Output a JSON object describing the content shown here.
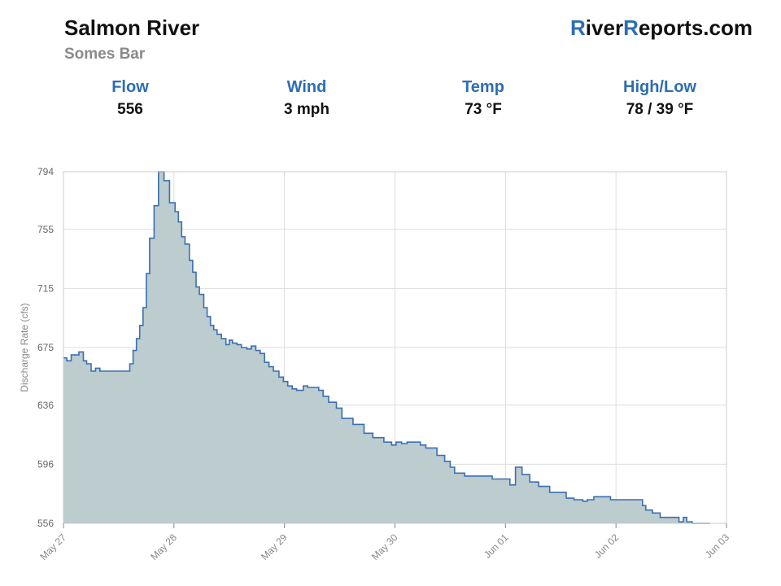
{
  "header": {
    "title": "Salmon River",
    "subtitle": "Somes Bar",
    "brand_r1": "R",
    "brand_p1": "iver",
    "brand_r2": "R",
    "brand_p2": "eports.com"
  },
  "stats": [
    {
      "label": "Flow",
      "value": "556"
    },
    {
      "label": "Wind",
      "value": "3 mph"
    },
    {
      "label": "Temp",
      "value": "73 °F"
    },
    {
      "label": "High/Low",
      "value": "78 / 39 °F"
    }
  ],
  "colors": {
    "accent": "#2d6db5",
    "line": "#3a6fb0",
    "fill": "#bccccf",
    "grid": "#dddddd"
  },
  "chart_data": {
    "type": "area",
    "step": true,
    "title": "",
    "xlabel": "",
    "ylabel": "Discharge Rate (cfs)",
    "ylim": [
      556,
      794
    ],
    "yticks": [
      556,
      596,
      636,
      675,
      715,
      755,
      794
    ],
    "xlim": [
      0,
      6
    ],
    "xticks": [
      {
        "label": "May 27",
        "x": 0
      },
      {
        "label": "May 28",
        "x": 1
      },
      {
        "label": "May 29",
        "x": 2
      },
      {
        "label": "May 30",
        "x": 3
      },
      {
        "label": "Jun 01",
        "x": 4
      },
      {
        "label": "Jun 02",
        "x": 5
      },
      {
        "label": "Jun 03",
        "x": 6
      }
    ],
    "grid": true,
    "series": [
      {
        "x": [
          0,
          0.03,
          0.07,
          0.14,
          0.18,
          0.21,
          0.25,
          0.29,
          0.33,
          0.37,
          0.41,
          0.6,
          0.63,
          0.66,
          0.69,
          0.72,
          0.75,
          0.78,
          0.82,
          0.86,
          0.91,
          0.96,
          1.01,
          1.04,
          1.07,
          1.1,
          1.14,
          1.17,
          1.2,
          1.23,
          1.27,
          1.3,
          1.33,
          1.36,
          1.39,
          1.43,
          1.47,
          1.5,
          1.53,
          1.57,
          1.61,
          1.66,
          1.7,
          1.74,
          1.78,
          1.82,
          1.86,
          1.9,
          1.95,
          1.99,
          2.03,
          2.07,
          2.11,
          2.14,
          2.17,
          2.21,
          2.24,
          2.27,
          2.31,
          2.35,
          2.4,
          2.47,
          2.52,
          2.62,
          2.72,
          2.76,
          2.8,
          2.85,
          2.9,
          2.97,
          3.01,
          3.06,
          3.11,
          3.23,
          3.28,
          3.38,
          3.45,
          3.5,
          3.54,
          3.59,
          3.63,
          3.7,
          3.76,
          3.81,
          3.88,
          3.98,
          4.04,
          4.09,
          4.15,
          4.22,
          4.3,
          4.4,
          4.48,
          4.55,
          4.62,
          4.66,
          4.7,
          4.74,
          4.8,
          4.88,
          4.95,
          5.04,
          5.12,
          5.17,
          5.21,
          5.24,
          5.27,
          5.33,
          5.4,
          5.51,
          5.57,
          5.61,
          5.64,
          5.69,
          5.73,
          5.77,
          5.82
        ],
        "values": [
          668,
          666,
          670,
          672,
          666,
          664,
          659,
          661,
          659,
          659,
          659,
          664,
          673,
          681,
          690,
          702,
          725,
          749,
          771,
          794,
          788,
          773,
          767,
          760,
          750,
          745,
          734,
          726,
          716,
          711,
          702,
          696,
          690,
          687,
          684,
          681,
          677,
          680,
          678,
          677,
          675,
          674,
          676,
          673,
          671,
          665,
          662,
          659,
          655,
          652,
          649,
          647,
          646,
          646,
          649,
          648,
          648,
          648,
          646,
          642,
          638,
          634,
          627,
          623,
          617,
          617,
          614,
          614,
          611,
          609,
          611,
          610,
          611,
          609,
          607,
          602,
          598,
          594,
          590,
          590,
          588,
          588,
          588,
          588,
          586,
          586,
          582,
          594,
          589,
          584,
          581,
          577,
          577,
          573,
          572,
          572,
          571,
          572,
          574,
          574,
          572,
          572,
          572,
          572,
          572,
          568,
          565,
          563,
          560,
          560,
          557,
          560,
          557,
          556,
          556,
          556,
          556
        ]
      }
    ]
  }
}
